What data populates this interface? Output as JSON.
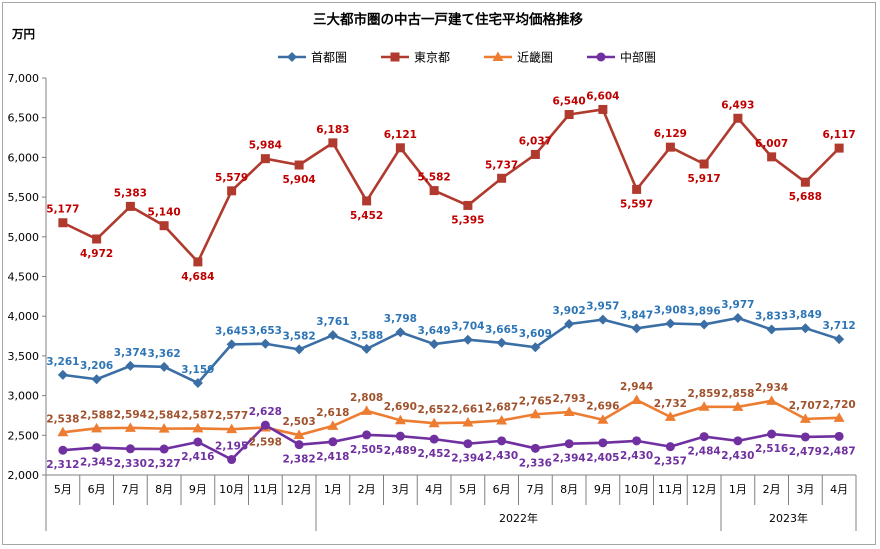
{
  "chart_data": {
    "type": "line",
    "title": "三大都市圏の中古一戸建て住宅平均価格推移",
    "y_unit": "万円",
    "ylim": [
      2000,
      7000
    ],
    "y_ticks": [
      "2,000",
      "2,500",
      "3,000",
      "3,500",
      "4,000",
      "4,500",
      "5,000",
      "5,500",
      "6,000",
      "6,500",
      "7,000"
    ],
    "y_tick_values": [
      2000,
      2500,
      3000,
      3500,
      4000,
      4500,
      5000,
      5500,
      6000,
      6500,
      7000
    ],
    "categories": [
      "5月",
      "6月",
      "7月",
      "8月",
      "9月",
      "10月",
      "11月",
      "12月",
      "1月",
      "2月",
      "3月",
      "4月",
      "5月",
      "6月",
      "7月",
      "8月",
      "9月",
      "10月",
      "11月",
      "12月",
      "1月",
      "2月",
      "3月",
      "4月"
    ],
    "year_groups": [
      {
        "label": "",
        "start": 0,
        "end": 7
      },
      {
        "label": "2022年",
        "start": 8,
        "end": 19
      },
      {
        "label": "2023年",
        "start": 20,
        "end": 23
      }
    ],
    "legend_position": "top",
    "grid": false,
    "series": [
      {
        "name": "首都圏",
        "color": "#3a6ea5",
        "label_color": "#2e75b6",
        "marker": "diamond",
        "values": [
          3261,
          3206,
          3374,
          3362,
          3159,
          3645,
          3653,
          3582,
          3761,
          3588,
          3798,
          3649,
          3704,
          3665,
          3609,
          3902,
          3957,
          3847,
          3908,
          3896,
          3977,
          3833,
          3849,
          3712
        ]
      },
      {
        "name": "東京都",
        "color": "#b03a2e",
        "label_color": "#c00000",
        "marker": "square",
        "values": [
          5177,
          4972,
          5383,
          5140,
          4684,
          5579,
          5984,
          5904,
          6183,
          5452,
          6121,
          5582,
          5395,
          5737,
          6037,
          6540,
          6604,
          5597,
          6129,
          5917,
          6493,
          6007,
          5688,
          6117
        ]
      },
      {
        "name": "近畿圏",
        "color": "#ed7d31",
        "label_color": "#a0522d",
        "marker": "triangle",
        "values": [
          2538,
          2588,
          2594,
          2584,
          2587,
          2577,
          2598,
          2503,
          2618,
          2808,
          2690,
          2652,
          2661,
          2687,
          2765,
          2793,
          2696,
          2944,
          2732,
          2859,
          2858,
          2934,
          2707,
          2720
        ]
      },
      {
        "name": "中部圏",
        "color": "#7030a0",
        "label_color": "#7030a0",
        "marker": "circle",
        "values": [
          2312,
          2345,
          2330,
          2327,
          2416,
          2195,
          2628,
          2382,
          2418,
          2505,
          2489,
          2452,
          2394,
          2430,
          2336,
          2394,
          2405,
          2430,
          2357,
          2484,
          2430,
          2516,
          2479,
          2487
        ]
      }
    ]
  }
}
